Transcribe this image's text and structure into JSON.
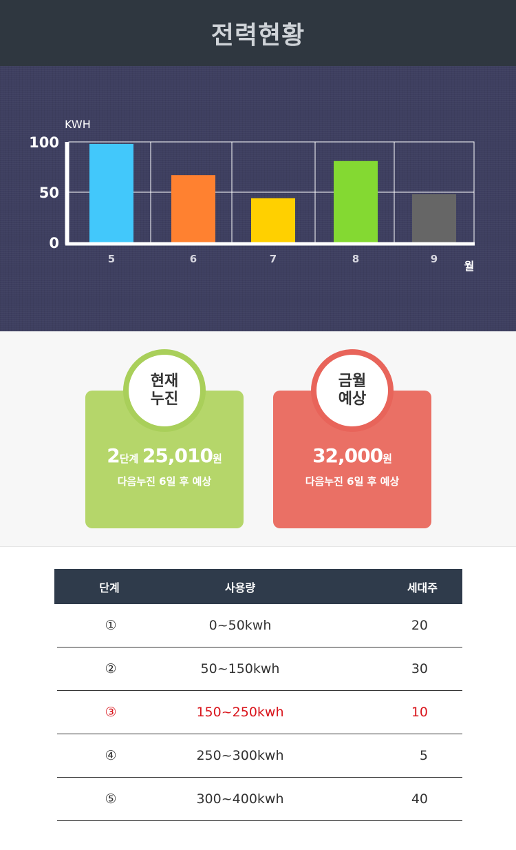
{
  "header": {
    "title": "전력현황"
  },
  "chart_data": {
    "type": "bar",
    "categories": [
      "5",
      "6",
      "7",
      "8",
      "9"
    ],
    "values": [
      98,
      67,
      44,
      81,
      48
    ],
    "colors": [
      "#42c8fb",
      "#ff8130",
      "#ffd000",
      "#84d932",
      "#666666"
    ],
    "ylabel": "KWH",
    "xlabel": "월",
    "yticks": [
      "100",
      "50",
      "0"
    ],
    "ylim": [
      0,
      100
    ],
    "grid": true
  },
  "cards": {
    "current": {
      "circle_line1": "현재",
      "circle_line2": "누진",
      "stage_num": "2",
      "stage_unit": "단계",
      "amount": "25,010",
      "currency": "원",
      "sub": "다음누진 6일 후 예상"
    },
    "forecast": {
      "circle_line1": "금월",
      "circle_line2": "예상",
      "amount": "32,000",
      "currency": "원",
      "sub": "다음누진 6일 후 예상"
    }
  },
  "table": {
    "headers": [
      "단계",
      "사용량",
      "세대주"
    ],
    "rows": [
      [
        "①",
        "0~50kwh",
        "20"
      ],
      [
        "②",
        "50~150kwh",
        "30"
      ],
      [
        "③",
        "150~250kwh",
        "10"
      ],
      [
        "④",
        "250~300kwh",
        "5"
      ],
      [
        "⑤",
        "300~400kwh",
        "40"
      ]
    ],
    "highlight_color": "#d9141b"
  }
}
